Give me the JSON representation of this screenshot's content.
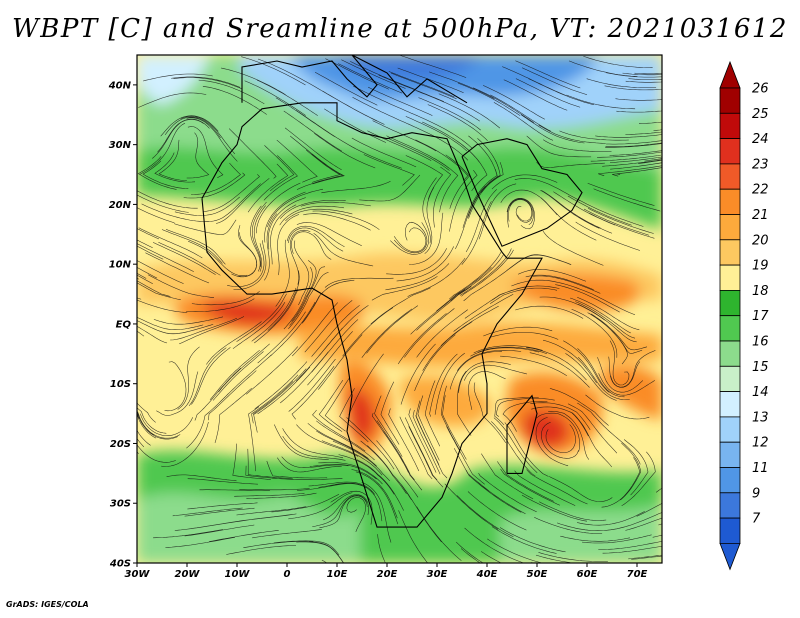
{
  "title": "WBPT [C] and Sreamline at 500hPa, VT: 2021031612",
  "credit": "GrADS: IGES/COLA",
  "map": {
    "lon_range": [
      -30,
      75
    ],
    "lat_range": [
      -40,
      45
    ],
    "lat_ticks": [
      {
        "value": 40,
        "label": "40N"
      },
      {
        "value": 30,
        "label": "30N"
      },
      {
        "value": 20,
        "label": "20N"
      },
      {
        "value": 10,
        "label": "10N"
      },
      {
        "value": 0,
        "label": "EQ"
      },
      {
        "value": -10,
        "label": "10S"
      },
      {
        "value": -20,
        "label": "20S"
      },
      {
        "value": -30,
        "label": "30S"
      },
      {
        "value": -40,
        "label": "40S"
      }
    ],
    "lon_ticks": [
      {
        "value": -30,
        "label": "30W"
      },
      {
        "value": -20,
        "label": "20W"
      },
      {
        "value": -10,
        "label": "10W"
      },
      {
        "value": 0,
        "label": "0"
      },
      {
        "value": 10,
        "label": "10E"
      },
      {
        "value": 20,
        "label": "20E"
      },
      {
        "value": 30,
        "label": "30E"
      },
      {
        "value": 40,
        "label": "40E"
      },
      {
        "value": 50,
        "label": "50E"
      },
      {
        "value": 60,
        "label": "60E"
      },
      {
        "value": 70,
        "label": "70E"
      }
    ]
  },
  "colorbar": {
    "levels": [
      {
        "label": "26",
        "color": "#a00000"
      },
      {
        "label": "25",
        "color": "#c00a0a"
      },
      {
        "label": "24",
        "color": "#e0301e"
      },
      {
        "label": "23",
        "color": "#f05a28"
      },
      {
        "label": "22",
        "color": "#fa8c28"
      },
      {
        "label": "21",
        "color": "#fdaa3c"
      },
      {
        "label": "20",
        "color": "#fdc860"
      },
      {
        "label": "19",
        "color": "#fff096"
      },
      {
        "label": "18",
        "color": "#2eb42e"
      },
      {
        "label": "17",
        "color": "#50c850"
      },
      {
        "label": "16",
        "color": "#8cdc8c"
      },
      {
        "label": "15",
        "color": "#c8f0c8"
      },
      {
        "label": "14",
        "color": "#d2f0ff"
      },
      {
        "label": "13",
        "color": "#a0d2fa"
      },
      {
        "label": "12",
        "color": "#78b4f0"
      },
      {
        "label": "11",
        "color": "#5096e6"
      },
      {
        "label": "9",
        "color": "#3c78dc"
      },
      {
        "label": "7",
        "color": "#1e5ad2"
      }
    ],
    "top_cap_color": "#a00000",
    "bottom_cap_color": "#1e5ad2"
  }
}
